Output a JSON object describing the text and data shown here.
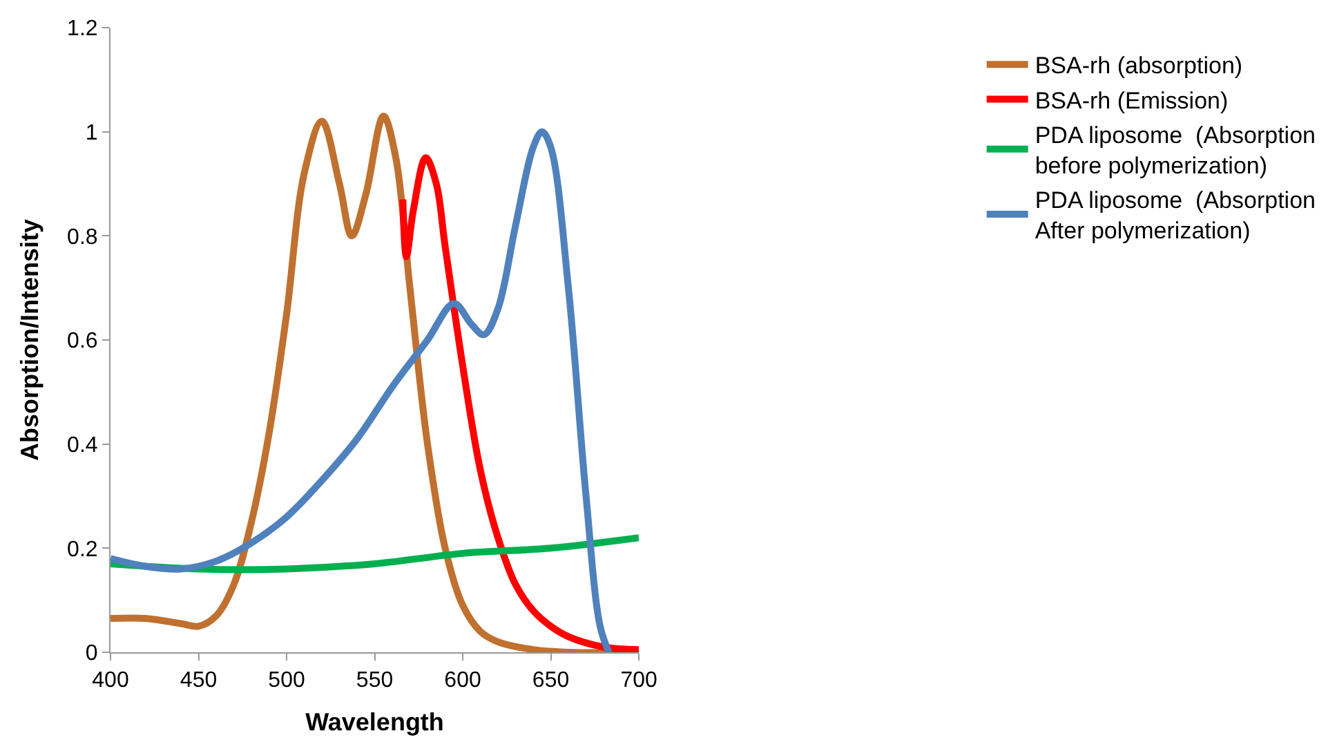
{
  "chart_data": {
    "type": "line",
    "xlabel": "Wavelength",
    "ylabel": "Absorption/Intensity",
    "xlim": [
      400,
      700
    ],
    "xticks": [
      400,
      450,
      500,
      550,
      600,
      650,
      700
    ],
    "ylim": [
      0,
      1.2
    ],
    "yticks": [
      0,
      0.2,
      0.4,
      0.6,
      0.8,
      1,
      1.2
    ],
    "legend": "right",
    "marker": "none",
    "line_style": "solid",
    "series": [
      {
        "name": "BSA-rh (absorption)",
        "color": "#c0702f",
        "x": [
          400,
          420,
          440,
          450,
          460,
          470,
          480,
          490,
          500,
          510,
          520,
          530,
          537,
          545,
          555,
          562,
          570,
          580,
          590,
          600,
          610,
          620,
          640,
          660,
          700
        ],
        "values": [
          0.065,
          0.065,
          0.055,
          0.05,
          0.07,
          0.13,
          0.25,
          0.42,
          0.65,
          0.92,
          1.02,
          0.9,
          0.8,
          0.88,
          1.03,
          0.95,
          0.7,
          0.4,
          0.2,
          0.09,
          0.04,
          0.02,
          0.005,
          0,
          0
        ]
      },
      {
        "name": "BSA-rh (Emission)",
        "color": "#ff0000",
        "x": [
          566,
          568,
          572,
          579,
          585,
          590,
          600,
          610,
          620,
          630,
          640,
          650,
          660,
          680,
          700
        ],
        "values": [
          0.87,
          0.76,
          0.85,
          0.95,
          0.9,
          0.78,
          0.55,
          0.35,
          0.22,
          0.13,
          0.08,
          0.05,
          0.03,
          0.01,
          0.005
        ]
      },
      {
        "name": "PDA liposome  (Absorption\nbefore polymerization)",
        "color": "#00b050",
        "x": [
          400,
          450,
          500,
          550,
          600,
          650,
          700
        ],
        "values": [
          0.17,
          0.16,
          0.16,
          0.17,
          0.19,
          0.2,
          0.22
        ]
      },
      {
        "name": "PDA liposome  (Absorption\nAfter polymerization)",
        "color": "#4f81bd",
        "x": [
          400,
          420,
          440,
          460,
          480,
          500,
          520,
          540,
          560,
          580,
          595,
          605,
          612,
          620,
          630,
          640,
          645,
          650,
          660,
          670,
          678,
          683
        ],
        "values": [
          0.18,
          0.165,
          0.16,
          0.175,
          0.21,
          0.26,
          0.33,
          0.41,
          0.51,
          0.6,
          0.67,
          0.63,
          0.61,
          0.66,
          0.82,
          0.97,
          1.0,
          0.97,
          0.7,
          0.3,
          0.05,
          0
        ]
      }
    ]
  }
}
